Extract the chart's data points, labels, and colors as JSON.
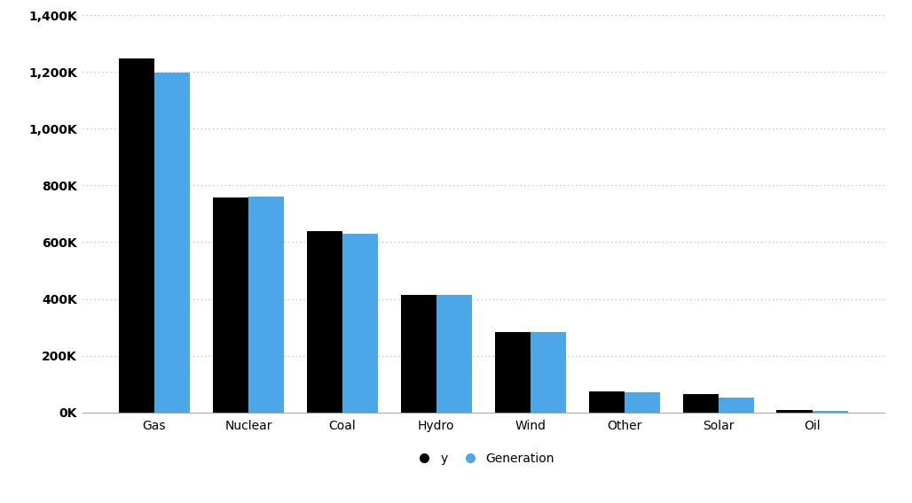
{
  "categories": [
    "Gas",
    "Nuclear",
    "Coal",
    "Hydro",
    "Wind",
    "Other",
    "Solar",
    "Oil"
  ],
  "y_values": [
    1248000,
    758000,
    640000,
    415000,
    283000,
    75000,
    65000,
    9000
  ],
  "generation_values": [
    1198000,
    762000,
    628000,
    415000,
    283000,
    72000,
    52000,
    5000
  ],
  "bar_color_y": "#000000",
  "bar_color_gen": "#4da6e8",
  "background_color": "#ffffff",
  "grid_color": "#b0b0b0",
  "ylim": [
    0,
    1400000
  ],
  "ytick_step": 200000,
  "bar_width": 0.38,
  "legend_labels": [
    "y",
    "Generation"
  ],
  "tick_fontsize": 10,
  "label_fontsize": 10
}
